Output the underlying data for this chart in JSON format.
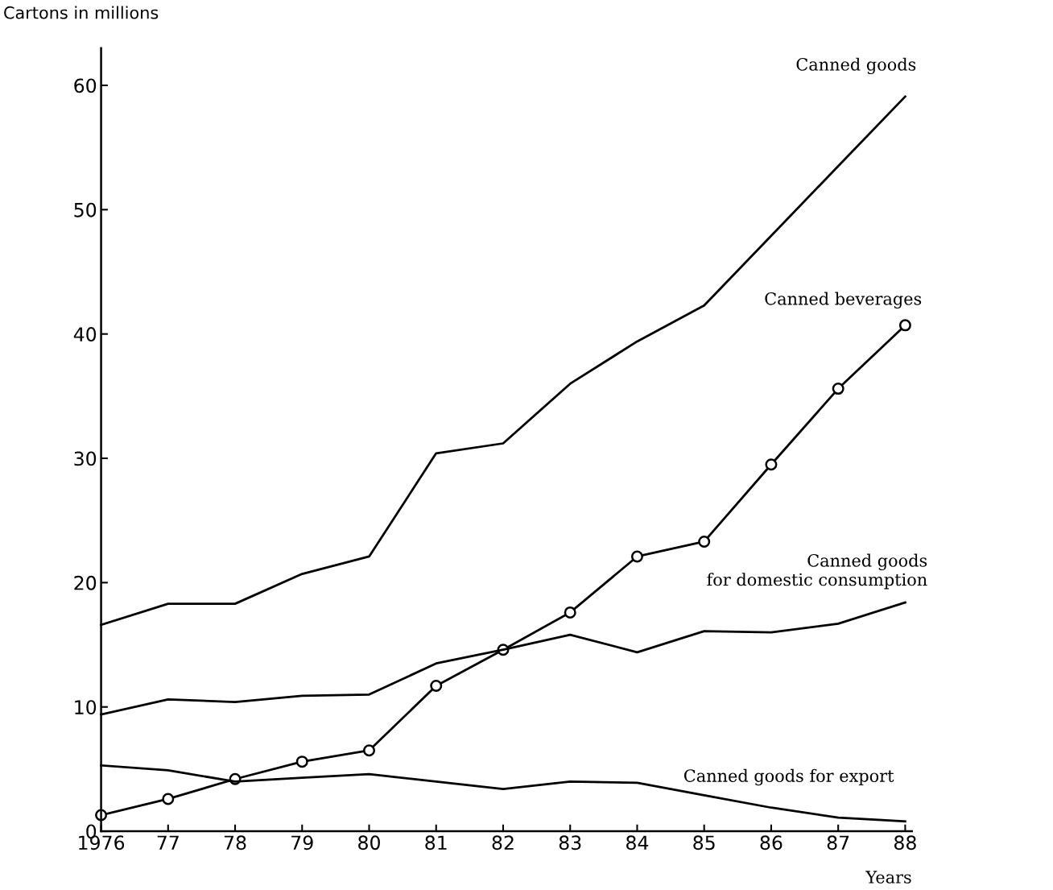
{
  "chart_data": {
    "type": "line",
    "ylabel": "Cartons in millions",
    "xlabel": "Years",
    "x": [
      1976,
      1977,
      1978,
      1979,
      1980,
      1981,
      1982,
      1983,
      1984,
      1985,
      1986,
      1987,
      1988
    ],
    "xlim": [
      1976,
      1988.1
    ],
    "ylim": [
      0,
      63
    ],
    "xticks": [
      1976,
      {
        "value": 1977,
        "label": "77"
      },
      {
        "value": 1978,
        "label": "78"
      },
      {
        "value": 1979,
        "label": "79"
      },
      {
        "value": 1980,
        "label": "80"
      },
      {
        "value": 1981,
        "label": "81"
      },
      {
        "value": 1982,
        "label": "82"
      },
      {
        "value": 1983,
        "label": "83"
      },
      {
        "value": 1984,
        "label": "84"
      },
      {
        "value": 1985,
        "label": "85"
      },
      {
        "value": 1986,
        "label": "86"
      },
      {
        "value": 1987,
        "label": "87"
      },
      {
        "value": 1988,
        "label": "88"
      }
    ],
    "yticks": [
      0,
      10,
      20,
      30,
      40,
      50,
      60
    ],
    "grid": false,
    "legend": false,
    "line_style": "solid",
    "series": [
      {
        "name": "Canned goods",
        "color": "#000000",
        "marker": "none",
        "values": [
          16.6,
          18.3,
          18.3,
          20.7,
          22.1,
          30.4,
          31.2,
          36.0,
          39.4,
          42.3,
          47.9,
          53.5,
          59.1
        ]
      },
      {
        "name": "Canned beverages",
        "color": "#000000",
        "marker": "circle",
        "values": [
          1.3,
          2.6,
          4.2,
          5.6,
          6.5,
          11.7,
          14.6,
          17.6,
          22.1,
          23.3,
          29.5,
          35.6,
          40.7
        ]
      },
      {
        "name": "Canned goods\nfor domestic consumption",
        "color": "#000000",
        "marker": "none",
        "values": [
          9.4,
          10.6,
          10.4,
          10.9,
          11.0,
          13.5,
          14.6,
          15.8,
          14.4,
          16.1,
          16.0,
          16.7,
          18.4
        ]
      },
      {
        "name": "Canned goods for export",
        "color": "#000000",
        "marker": "none",
        "values": [
          5.3,
          4.9,
          4.0,
          4.3,
          4.6,
          4.0,
          3.4,
          4.0,
          3.9,
          2.9,
          1.9,
          1.1,
          0.8
        ]
      }
    ]
  }
}
